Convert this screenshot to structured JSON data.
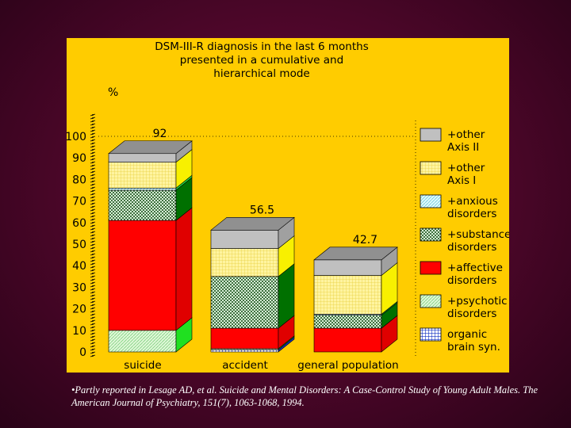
{
  "chart_data": {
    "type": "bar",
    "title_lines": [
      "DSM-III-R diagnosis in the last 6 months",
      "presented in a cumulative and",
      "hierarchical mode"
    ],
    "ylabel": "%",
    "ylim": [
      0,
      100
    ],
    "yticks": [
      "0",
      "10",
      "20",
      "30",
      "40",
      "50",
      "60",
      "70",
      "80",
      "90",
      "100"
    ],
    "categories": [
      "suicide",
      "accident",
      "general population"
    ],
    "totals_labels": [
      "92",
      "56.5",
      "42.7"
    ],
    "totals": [
      92,
      56.5,
      42.7
    ],
    "series": [
      {
        "name": "organic brain syn.",
        "values": [
          0,
          1,
          0
        ],
        "color": "#1030c0"
      },
      {
        "name": "+psychotic disorders",
        "values": [
          10,
          0.5,
          0
        ],
        "color": "#c8f0c0"
      },
      {
        "name": "+affective disorders",
        "values": [
          51,
          9.5,
          11
        ],
        "color": "#ff0000"
      },
      {
        "name": "+substance disorders",
        "values": [
          14,
          24,
          6
        ],
        "color": "#a8c8a8"
      },
      {
        "name": "+anxious disorders",
        "values": [
          1,
          0,
          0.5
        ],
        "color": "#c0f0ff"
      },
      {
        "name": "+other Axis I",
        "values": [
          12,
          13,
          18
        ],
        "color": "#fff080"
      },
      {
        "name": "+other Axis II",
        "values": [
          4,
          8.5,
          7.2
        ],
        "color": "#c0c0c0"
      }
    ],
    "legend_lines": [
      [
        "+other",
        "Axis II"
      ],
      [
        "+other",
        "Axis I"
      ],
      [
        "+anxious",
        "disorders"
      ],
      [
        "+substance",
        "disorders"
      ],
      [
        "+affective",
        "disorders"
      ],
      [
        "+psychotic",
        "disorders"
      ],
      [
        "organic",
        "brain syn."
      ]
    ],
    "legend_position": "right",
    "grid": false
  },
  "footnote": "•Partly reported in Lesage AD, et al. Suicide and Mental Disorders:  A Case-Control Study of Young Adult Males.  The American Journal of Psychiatry, 151(7), 1063-1068, 1994."
}
